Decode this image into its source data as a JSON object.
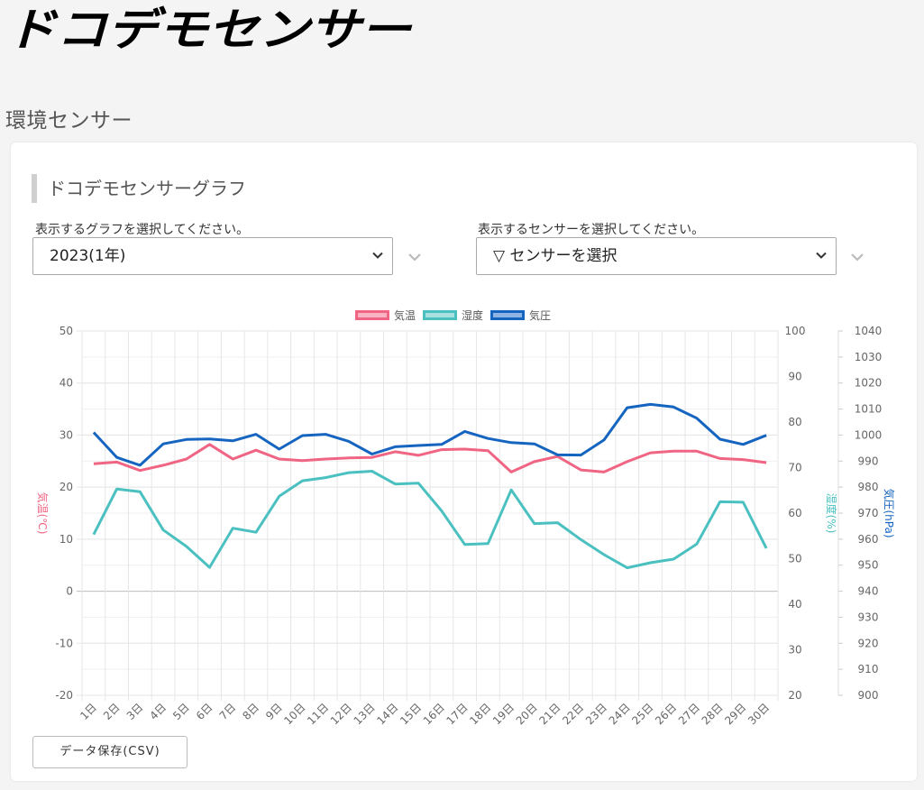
{
  "brand": {
    "logo_text": "ドコデモセンサー"
  },
  "page": {
    "title": "環境センサー"
  },
  "card": {
    "title": "ドコデモセンサーグラフ"
  },
  "graph_select": {
    "label": "表示するグラフを選択してください。",
    "value": "2023(1年)"
  },
  "sensor_select": {
    "label": "表示するセンサーを選択してください。",
    "value": "▽ センサーを選択"
  },
  "export_button": {
    "label": "データ保存(CSV)"
  },
  "colors": {
    "temperature": "#f06583",
    "humidity": "#4bc0c0",
    "pressure": "#1565c0",
    "grid": "#e6e6e6"
  },
  "chart_data": {
    "type": "line",
    "x": [
      "1日",
      "2日",
      "3日",
      "4日",
      "5日",
      "6日",
      "7日",
      "8日",
      "9日",
      "10日",
      "11日",
      "12日",
      "13日",
      "14日",
      "15日",
      "16日",
      "17日",
      "18日",
      "19日",
      "20日",
      "21日",
      "22日",
      "23日",
      "24日",
      "25日",
      "26日",
      "27日",
      "28日",
      "29日",
      "30日"
    ],
    "series": [
      {
        "name": "気温",
        "axis": "y_left",
        "values": [
          24.5,
          24.8,
          23.2,
          24.2,
          25.4,
          28.2,
          25.4,
          27.1,
          25.4,
          25.1,
          25.4,
          25.6,
          25.7,
          26.8,
          26.1,
          27.2,
          27.3,
          27.0,
          22.9,
          24.9,
          25.9,
          23.3,
          22.9,
          24.9,
          26.6,
          26.9,
          26.9,
          25.5,
          25.3,
          24.7
        ]
      },
      {
        "name": "湿度",
        "axis": "y_humidity",
        "values": [
          55.3,
          65.3,
          64.7,
          56.3,
          52.7,
          48.1,
          56.7,
          55.8,
          63.7,
          67.1,
          67.8,
          68.9,
          69.2,
          66.4,
          66.6,
          60.5,
          53.1,
          53.3,
          65.1,
          57.7,
          57.9,
          54.2,
          50.9,
          48.0,
          49.1,
          49.9,
          53.2,
          62.5,
          62.4,
          52.3
        ]
      },
      {
        "name": "気圧",
        "axis": "y_pressure",
        "values": [
          1001,
          991.4,
          988.4,
          996.6,
          998.3,
          998.5,
          997.8,
          1000.3,
          994.6,
          999.8,
          1000.3,
          997.6,
          992.7,
          995.5,
          996.0,
          996.4,
          1001.4,
          998.7,
          997.1,
          996.6,
          992.4,
          992.3,
          998.1,
          1010.5,
          1011.8,
          1010.8,
          1006.5,
          998.4,
          996.4,
          999.9
        ]
      }
    ],
    "y_left": {
      "label": "気温(℃)",
      "ticks": [
        "50",
        "40",
        "30",
        "20",
        "10",
        "0",
        "-10",
        "-20"
      ],
      "ylim": [
        -20,
        50
      ]
    },
    "y_humidity": {
      "label": "湿度(%)",
      "ticks": [
        "100",
        "90",
        "80",
        "70",
        "60",
        "50",
        "40",
        "30",
        "20"
      ],
      "ylim": [
        20,
        100
      ]
    },
    "y_pressure": {
      "label": "気圧(hPa)",
      "ticks": [
        "1040",
        "1030",
        "1020",
        "1010",
        "1000",
        "990",
        "980",
        "970",
        "960",
        "950",
        "940",
        "930",
        "920",
        "910",
        "900"
      ],
      "ylim": [
        900,
        1040
      ]
    },
    "legend_position": "top",
    "grid": true
  }
}
